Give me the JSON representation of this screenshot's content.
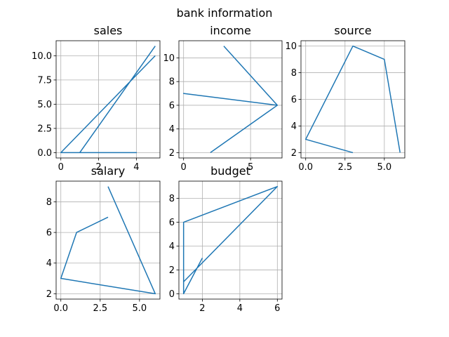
{
  "figure": {
    "suptitle": "bank information"
  },
  "chart_data": [
    {
      "type": "line",
      "title": "sales",
      "xlabel": "",
      "ylabel": "",
      "xlim": [
        -0.25,
        5.25
      ],
      "ylim": [
        -0.55,
        11.55
      ],
      "xticks": [
        0,
        2,
        4
      ],
      "xticklabels": [
        "0",
        "2",
        "4"
      ],
      "yticks": [
        0,
        2.5,
        5,
        7.5,
        10
      ],
      "yticklabels": [
        "0.0",
        "2.5",
        "5.0",
        "7.5",
        "10.0"
      ],
      "grid": true,
      "series": [
        {
          "x": [
            5,
            1,
            4,
            0,
            5
          ],
          "y": [
            11,
            0,
            0,
            0,
            10
          ]
        }
      ]
    },
    {
      "type": "line",
      "title": "income",
      "xlabel": "",
      "ylabel": "",
      "xlim": [
        -0.35,
        7.35
      ],
      "ylim": [
        1.55,
        11.45
      ],
      "xticks": [
        0,
        5
      ],
      "xticklabels": [
        "0",
        "5"
      ],
      "yticks": [
        2,
        4,
        6,
        8,
        10
      ],
      "yticklabels": [
        "2",
        "4",
        "6",
        "8",
        "10"
      ],
      "grid": true,
      "series": [
        {
          "x": [
            3,
            7,
            0,
            7,
            2
          ],
          "y": [
            11,
            6,
            7,
            6,
            2
          ]
        }
      ]
    },
    {
      "type": "line",
      "title": "source",
      "xlabel": "",
      "ylabel": "",
      "xlim": [
        -0.3,
        6.3
      ],
      "ylim": [
        1.6,
        10.4
      ],
      "xticks": [
        0,
        2.5,
        5
      ],
      "xticklabels": [
        "0.0",
        "2.5",
        "5.0"
      ],
      "yticks": [
        2,
        4,
        6,
        8,
        10
      ],
      "yticklabels": [
        "2",
        "4",
        "6",
        "8",
        "10"
      ],
      "grid": true,
      "series": [
        {
          "x": [
            3,
            0,
            3,
            5,
            6
          ],
          "y": [
            2,
            3,
            10,
            9,
            2
          ]
        }
      ]
    },
    {
      "type": "line",
      "title": "salary",
      "xlabel": "",
      "ylabel": "",
      "xlim": [
        -0.3,
        6.3
      ],
      "ylim": [
        1.65,
        9.35
      ],
      "xticks": [
        0,
        2.5,
        5
      ],
      "xticklabels": [
        "0.0",
        "2.5",
        "5.0"
      ],
      "yticks": [
        2,
        4,
        6,
        8
      ],
      "yticklabels": [
        "2",
        "4",
        "6",
        "8"
      ],
      "grid": true,
      "series": [
        {
          "x": [
            3,
            1,
            0,
            6,
            3
          ],
          "y": [
            7,
            6,
            3,
            2,
            9
          ]
        }
      ]
    },
    {
      "type": "line",
      "title": "budget",
      "xlabel": "",
      "ylabel": "",
      "xlim": [
        0.75,
        6.25
      ],
      "ylim": [
        -0.45,
        9.45
      ],
      "xticks": [
        2,
        4,
        6
      ],
      "xticklabels": [
        "2",
        "4",
        "6"
      ],
      "yticks": [
        0,
        2,
        4,
        6,
        8
      ],
      "yticklabels": [
        "0",
        "2",
        "4",
        "6",
        "8"
      ],
      "grid": true,
      "series": [
        {
          "x": [
            2,
            1,
            1,
            6,
            1,
            1
          ],
          "y": [
            3,
            0,
            6,
            9,
            1,
            6
          ]
        }
      ]
    }
  ]
}
